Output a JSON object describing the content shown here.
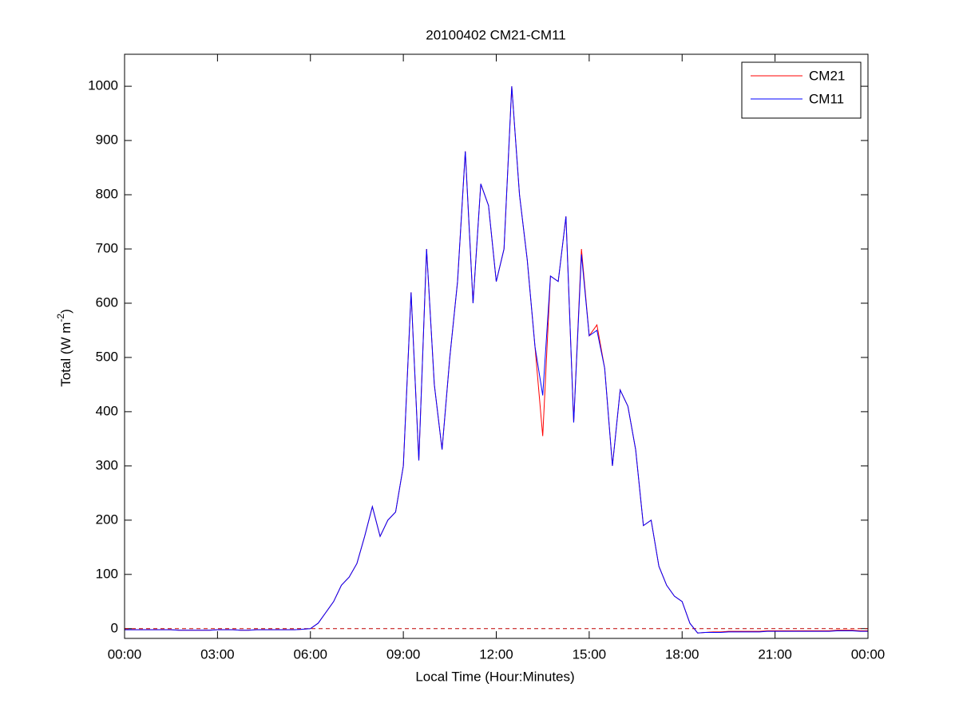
{
  "chart_data": {
    "type": "line",
    "title": "20100402 CM21-CM11",
    "xlabel": "Local Time (Hour:Minutes)",
    "ylabel": [
      "Total (W m",
      "-2",
      ")"
    ],
    "x": [
      0,
      0.25,
      0.5,
      0.75,
      1,
      1.25,
      1.5,
      1.75,
      2,
      2.25,
      2.5,
      2.75,
      3,
      3.25,
      3.5,
      3.75,
      4,
      4.25,
      4.5,
      4.75,
      5,
      5.25,
      5.5,
      5.75,
      6,
      6.25,
      6.5,
      6.75,
      7,
      7.25,
      7.5,
      7.75,
      8,
      8.25,
      8.5,
      8.75,
      9,
      9.25,
      9.5,
      9.75,
      10,
      10.25,
      10.5,
      10.75,
      11,
      11.25,
      11.5,
      11.75,
      12,
      12.25,
      12.5,
      12.75,
      13,
      13.25,
      13.5,
      13.75,
      14,
      14.25,
      14.5,
      14.75,
      15,
      15.25,
      15.5,
      15.75,
      16,
      16.25,
      16.5,
      16.75,
      17,
      17.25,
      17.5,
      17.75,
      18,
      18.25,
      18.5,
      18.75,
      19,
      19.25,
      19.5,
      19.75,
      20,
      20.25,
      20.5,
      20.75,
      21,
      21.25,
      21.5,
      21.75,
      22,
      22.25,
      22.5,
      22.75,
      23,
      23.25,
      23.5,
      23.75,
      24
    ],
    "series": [
      {
        "name": "CM21",
        "color": "#ff0000",
        "values": [
          -2,
          -2,
          -2,
          -2,
          -2,
          -2,
          -2,
          -3,
          -3,
          -3,
          -3,
          -3,
          -2,
          -2,
          -2,
          -3,
          -3,
          -2,
          -2,
          -2,
          -2,
          -2,
          -2,
          -1,
          0,
          10,
          30,
          50,
          80,
          95,
          120,
          170,
          225,
          170,
          200,
          215,
          300,
          620,
          310,
          700,
          450,
          330,
          500,
          640,
          880,
          600,
          820,
          780,
          640,
          700,
          1000,
          800,
          680,
          520,
          355,
          650,
          640,
          760,
          380,
          700,
          540,
          560,
          480,
          300,
          440,
          410,
          330,
          190,
          200,
          115,
          80,
          60,
          50,
          10,
          -8,
          -7,
          -6,
          -6,
          -5,
          -5,
          -5,
          -5,
          -5,
          -4,
          -4,
          -4,
          -4,
          -4,
          -4,
          -4,
          -4,
          -4,
          -3,
          -3,
          -3,
          -4,
          -4
        ]
      },
      {
        "name": "CM11",
        "color": "#0000ff",
        "values": [
          -2,
          -2,
          -2,
          -2,
          -2,
          -2,
          -2,
          -3,
          -3,
          -3,
          -3,
          -3,
          -2,
          -2,
          -2,
          -3,
          -3,
          -2,
          -2,
          -2,
          -2,
          -2,
          -2,
          -1,
          0,
          10,
          30,
          50,
          80,
          95,
          120,
          170,
          225,
          170,
          200,
          215,
          300,
          620,
          310,
          700,
          450,
          330,
          500,
          640,
          880,
          600,
          820,
          780,
          640,
          700,
          1000,
          800,
          680,
          520,
          430,
          650,
          640,
          760,
          380,
          690,
          540,
          550,
          480,
          300,
          440,
          410,
          330,
          190,
          200,
          115,
          80,
          60,
          50,
          10,
          -8,
          -7,
          -7,
          -7,
          -6,
          -6,
          -6,
          -6,
          -6,
          -5,
          -5,
          -5,
          -5,
          -5,
          -5,
          -5,
          -5,
          -5,
          -4,
          -4,
          -4,
          -5,
          -5
        ]
      }
    ],
    "xlim": [
      0,
      24
    ],
    "xticks": [
      {
        "value": 0,
        "label": "00:00"
      },
      {
        "value": 3,
        "label": "03:00"
      },
      {
        "value": 6,
        "label": "06:00"
      },
      {
        "value": 9,
        "label": "09:00"
      },
      {
        "value": 12,
        "label": "12:00"
      },
      {
        "value": 15,
        "label": "15:00"
      },
      {
        "value": 18,
        "label": "18:00"
      },
      {
        "value": 21,
        "label": "21:00"
      },
      {
        "value": 24,
        "label": "00:00"
      }
    ],
    "ylim": [
      -18,
      1059
    ],
    "yticks": [
      0,
      100,
      200,
      300,
      400,
      500,
      600,
      700,
      800,
      900,
      1000
    ],
    "hline": 0,
    "hline_color": "#c00000",
    "grid": false,
    "legend": "upper-right"
  }
}
